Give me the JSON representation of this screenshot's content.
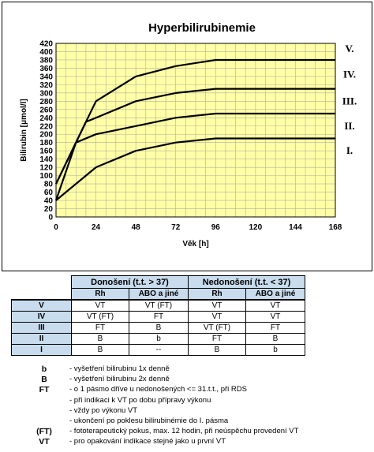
{
  "chart_data": {
    "type": "line",
    "title": "Hyperbilirubinemie",
    "xlabel": "Věk [h]",
    "ylabel": "Bilirubin [μmol/l]",
    "xlim": [
      0,
      168
    ],
    "ylim": [
      0,
      420
    ],
    "x_ticks": [
      "0",
      "24",
      "48",
      "72",
      "96",
      "120",
      "144",
      "168"
    ],
    "y_ticks": [
      "0",
      "20",
      "40",
      "60",
      "80",
      "100",
      "120",
      "140",
      "160",
      "180",
      "200",
      "220",
      "240",
      "260",
      "280",
      "300",
      "320",
      "340",
      "360",
      "380",
      "400",
      "420"
    ],
    "grid": true,
    "series": [
      {
        "name": "V.",
        "points": [
          [
            0,
            80
          ],
          [
            12,
            180
          ],
          [
            24,
            280
          ],
          [
            48,
            340
          ],
          [
            72,
            365
          ],
          [
            96,
            380
          ],
          [
            168,
            380
          ]
        ]
      },
      {
        "name": "IV.",
        "points": [
          [
            0,
            80
          ],
          [
            18,
            230
          ],
          [
            24,
            240
          ],
          [
            48,
            280
          ],
          [
            72,
            300
          ],
          [
            96,
            310
          ],
          [
            168,
            310
          ]
        ]
      },
      {
        "name": "III.",
        "points": [
          [
            0,
            40
          ],
          [
            12,
            180
          ],
          [
            24,
            200
          ],
          [
            48,
            220
          ],
          [
            72,
            240
          ],
          [
            96,
            250
          ],
          [
            168,
            250
          ]
        ]
      },
      {
        "name": "II.",
        "points": [
          [
            0,
            40
          ],
          [
            24,
            120
          ],
          [
            48,
            160
          ],
          [
            72,
            180
          ],
          [
            96,
            190
          ],
          [
            168,
            190
          ]
        ]
      },
      {
        "name": "I.",
        "points": []
      }
    ],
    "colors": {
      "plot_bg": "#ffffa8",
      "grid": "#b0b0a0",
      "line": "#000000"
    }
  },
  "table": {
    "group1": "Donošení (t.t. > 37)",
    "group2": "Nedonošení (t.t. < 37)",
    "subheaders": [
      "Rh",
      "ABO a jiné",
      "Rh",
      "ABO a jiné"
    ],
    "rows": [
      {
        "level": "V",
        "cells": [
          "VT",
          "VT (FT)",
          "VT",
          "VT"
        ]
      },
      {
        "level": "IV",
        "cells": [
          "VT (FT)",
          "FT",
          "VT",
          "VT"
        ]
      },
      {
        "level": "III",
        "cells": [
          "FT",
          "B",
          "VT (FT)",
          "FT"
        ]
      },
      {
        "level": "II",
        "cells": [
          "B",
          "b",
          "FT",
          "B"
        ]
      },
      {
        "level": "I",
        "cells": [
          "B",
          "--",
          "B",
          "b"
        ]
      }
    ]
  },
  "legend": [
    {
      "key": "b",
      "desc": "- vyšetření bilirubinu 1x denně"
    },
    {
      "key": "B",
      "desc": "- vyšetření bilirubinu 2x denně"
    },
    {
      "key": "FT",
      "desc": "- o 1 pásmo dříve u nedonošených <= 31.t.t., při RDS"
    },
    {
      "key": "",
      "desc": "- při indikaci k VT po dobu přípravy výkonu"
    },
    {
      "key": "",
      "desc": "- vždy po výkonu VT"
    },
    {
      "key": "",
      "desc": "- ukončení po poklesu bilirubinémie do I. pásma"
    },
    {
      "key": "(FT)",
      "desc": "- fototerapeutický pokus, max. 12 hodin, při neúspěchu provedení VT"
    },
    {
      "key": "VT",
      "desc": "- pro opakování indikace stejné jako u první VT"
    }
  ]
}
